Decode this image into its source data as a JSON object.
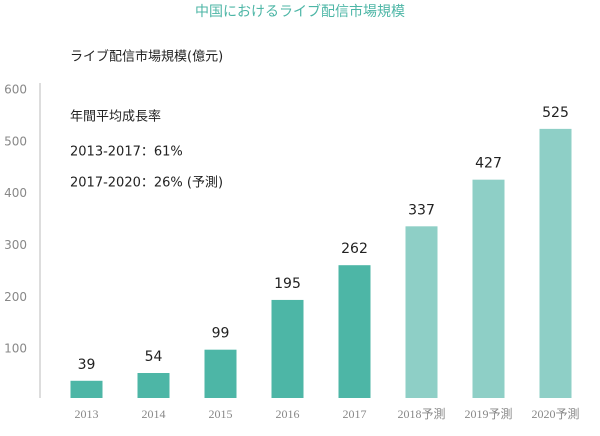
{
  "chart_data": {
    "type": "bar",
    "title": "中国におけるライブ配信市場規模",
    "y_label": "ライブ配信市場規模(億元)",
    "annotations": [
      "年間平均成長率",
      "2013-2017：61%",
      "2017-2020：26% (予測)"
    ],
    "categories": [
      "2013",
      "2014",
      "2015",
      "2016",
      "2017",
      "2018予測",
      "2019予測",
      "2020予測"
    ],
    "values": [
      39,
      54,
      99,
      195,
      262,
      337,
      427,
      525
    ],
    "colors": [
      "#4db6a6",
      "#4db6a6",
      "#4db6a6",
      "#4db6a6",
      "#4db6a6",
      "#8ecfc6",
      "#8ecfc6",
      "#8ecfc6"
    ],
    "title_color": "#4db6a6",
    "ylim": [
      0,
      600
    ],
    "yticks": [
      100,
      200,
      300,
      400,
      500,
      600
    ],
    "grid": false
  }
}
